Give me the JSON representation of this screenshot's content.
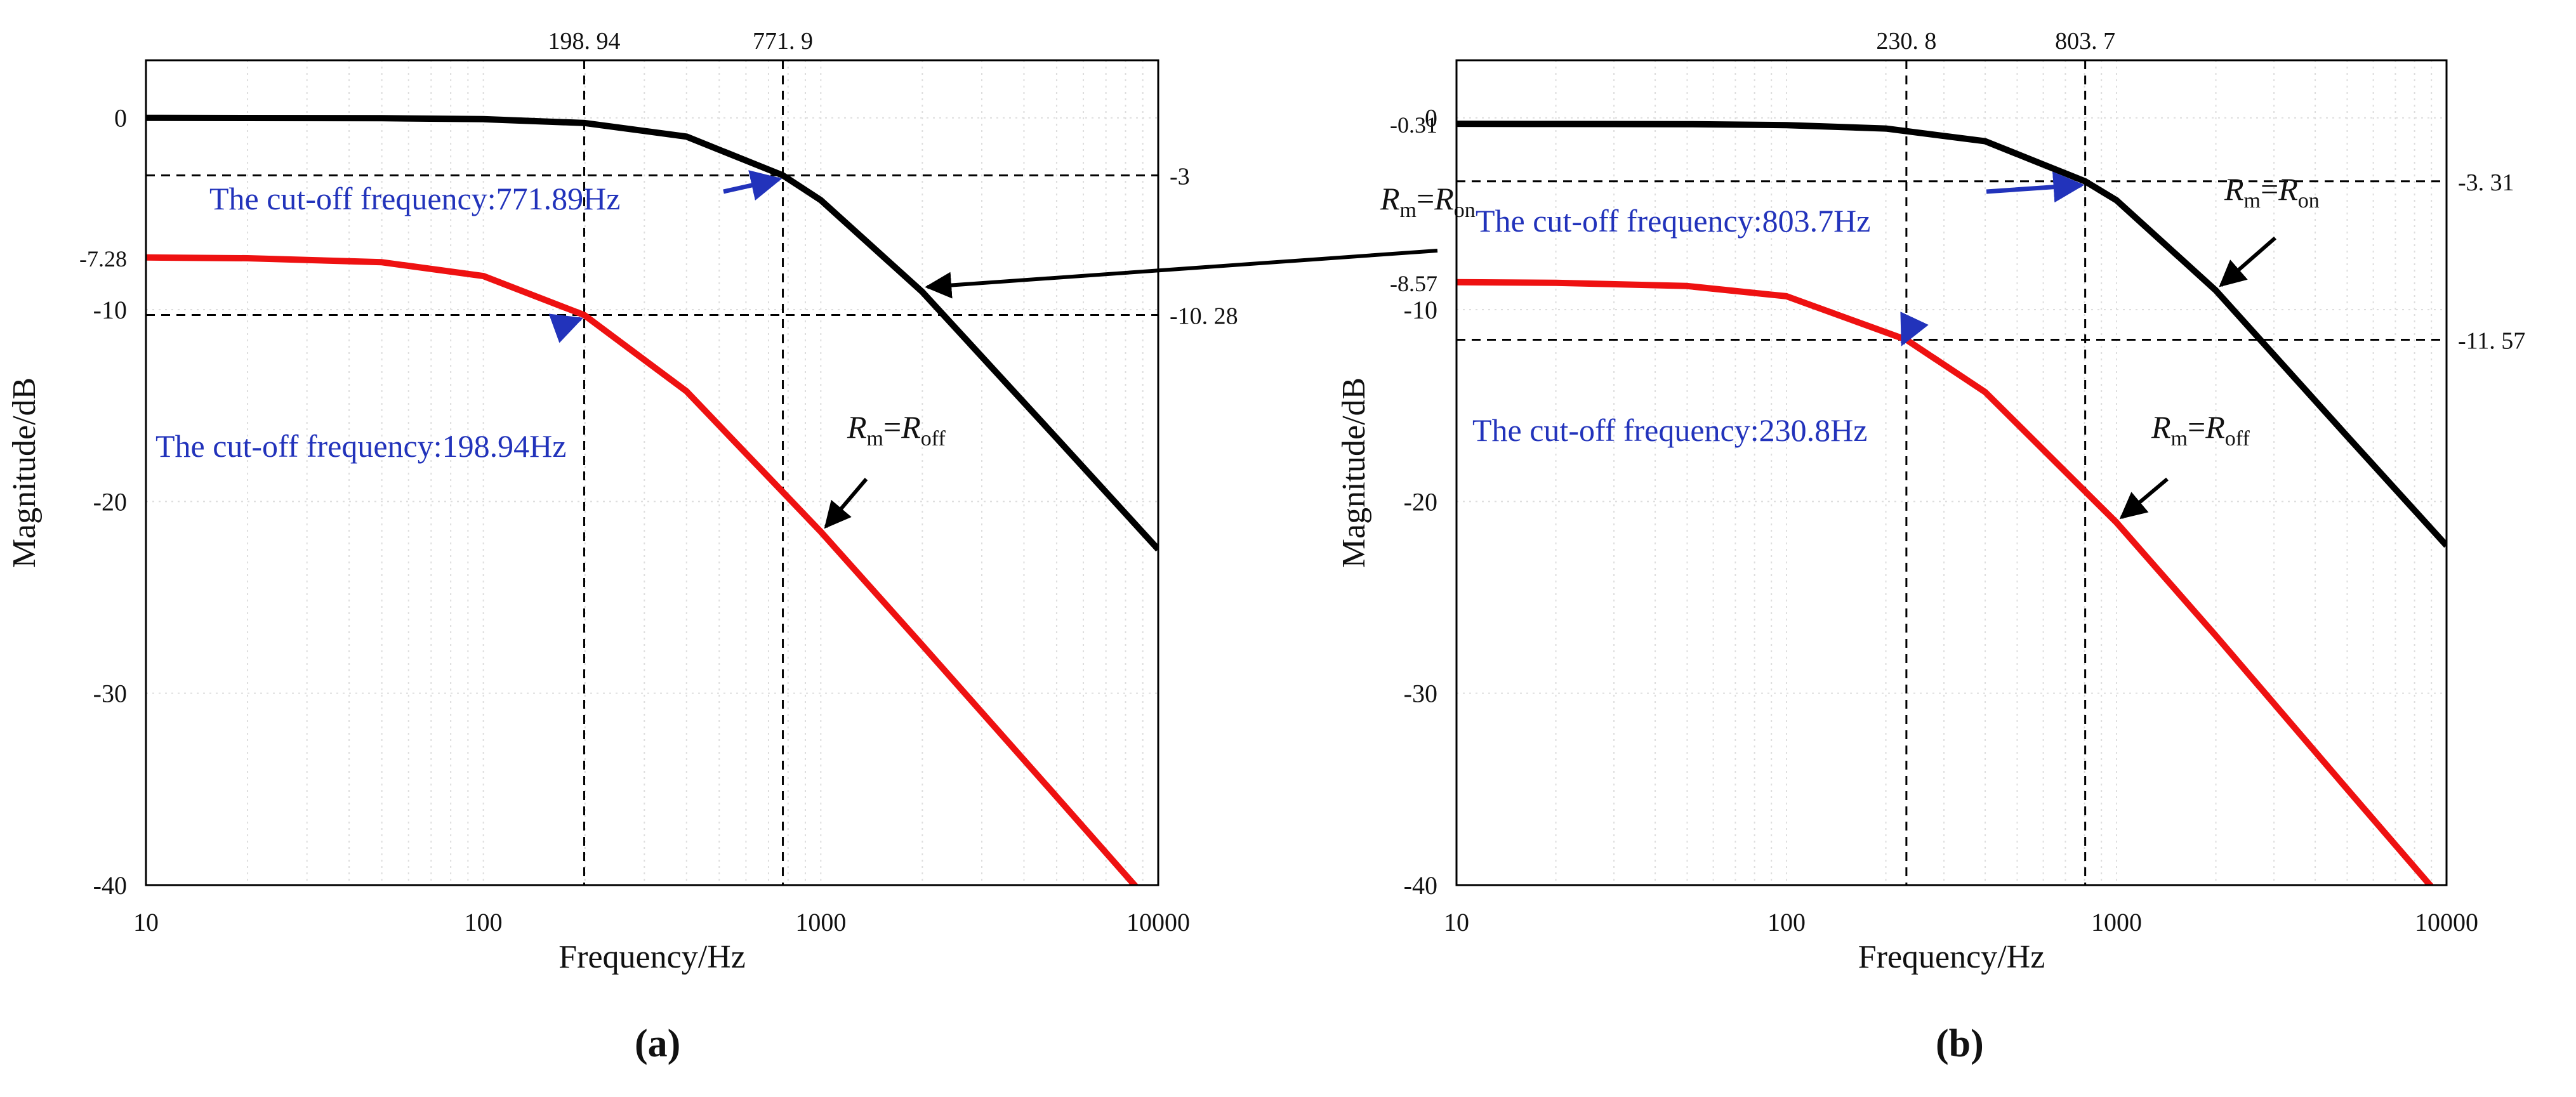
{
  "colors": {
    "on_curve": "#000000",
    "off_curve": "#ee1111",
    "annotation": "#2233bb",
    "guide": "#000000",
    "grid": "#dddddd"
  },
  "captions": [
    "(a)",
    "(b)"
  ],
  "chart_data": [
    {
      "type": "line",
      "panel_label": "(a)",
      "xlabel": "Frequency/Hz",
      "ylabel": "Magnitude/dB",
      "x_scale": "log",
      "xlim": [
        10,
        10000
      ],
      "ylim": [
        -40,
        3
      ],
      "x_ticks": [
        10,
        100,
        1000,
        10000
      ],
      "x_tick_labels": [
        "10",
        "100",
        "1000",
        "10000"
      ],
      "y_ticks": [
        0,
        -10,
        -20,
        -30,
        -40
      ],
      "y_tick_labels": [
        "0",
        "-10",
        "-20",
        "-30",
        "-40"
      ],
      "grid": true,
      "series": [
        {
          "name_label": "Rm=Ron",
          "name_main": "R",
          "name_main_sub": "m",
          "name_eq": "=R",
          "name_eq_sub": "on",
          "color": "#000000",
          "x": [
            10,
            20,
            50,
            100,
            200,
            400,
            771.9,
            1000,
            2000,
            5000,
            10000
          ],
          "y": [
            0,
            -0.01,
            -0.02,
            -0.07,
            -0.27,
            -0.98,
            -3.0,
            -4.29,
            -9.08,
            -16.7,
            -22.5
          ]
        },
        {
          "name_label": "Rm=Roff",
          "name_main": "R",
          "name_main_sub": "m",
          "name_eq": "=R",
          "name_eq_sub": "off",
          "color": "#ee1111",
          "x": [
            10,
            20,
            50,
            100,
            198.94,
            400,
            1000,
            2000,
            5000,
            10000
          ],
          "y": [
            -7.28,
            -7.32,
            -7.53,
            -8.25,
            -10.28,
            -14.26,
            -21.58,
            -27.5,
            -35.4,
            -41.4
          ]
        }
      ],
      "guides": {
        "vertical": [
          198.94,
          771.9
        ],
        "vertical_labels": [
          "198. 94",
          "771. 9"
        ],
        "horizontal": [
          -3,
          -10.28
        ],
        "horizontal_labels": [
          "-3",
          "-10. 28"
        ],
        "left_extra_label": "-7.28",
        "left_extra_value": -7.28
      },
      "annotations": [
        {
          "text": "The cut-off frequency:771.89Hz",
          "target_x": 771.9,
          "target_y": -3
        },
        {
          "text": "The cut-off frequency:198.94Hz",
          "target_x": 198.94,
          "target_y": -10.28
        }
      ]
    },
    {
      "type": "line",
      "panel_label": "(b)",
      "xlabel": "Frequency/Hz",
      "ylabel": "Magnitude/dB",
      "x_scale": "log",
      "xlim": [
        10,
        10000
      ],
      "ylim": [
        -40,
        3
      ],
      "x_ticks": [
        10,
        100,
        1000,
        10000
      ],
      "x_tick_labels": [
        "10",
        "100",
        "1000",
        "10000"
      ],
      "y_ticks": [
        0,
        -10,
        -20,
        -30,
        -40
      ],
      "y_tick_labels": [
        "0",
        "-10",
        "-20",
        "-30",
        "-40"
      ],
      "grid": true,
      "series": [
        {
          "name_label": "Rm=Ron",
          "name_main": "R",
          "name_main_sub": "m",
          "name_eq": "=R",
          "name_eq_sub": "on",
          "color": "#000000",
          "x": [
            10,
            20,
            50,
            100,
            200,
            400,
            803.7,
            1000,
            2000,
            5000,
            10000
          ],
          "y": [
            -0.31,
            -0.32,
            -0.33,
            -0.38,
            -0.56,
            -1.22,
            -3.31,
            -4.3,
            -9.0,
            -16.6,
            -22.3
          ]
        },
        {
          "name_label": "Rm=Roff",
          "name_main": "R",
          "name_main_sub": "m",
          "name_eq": "=R",
          "name_eq_sub": "off",
          "color": "#ee1111",
          "x": [
            10,
            20,
            50,
            100,
            230.8,
            400,
            1000,
            2000,
            5000,
            10000
          ],
          "y": [
            -8.57,
            -8.6,
            -8.77,
            -9.3,
            -11.57,
            -14.3,
            -21.1,
            -27.0,
            -35.0,
            -41.0
          ]
        }
      ],
      "guides": {
        "vertical": [
          230.8,
          803.7
        ],
        "vertical_labels": [
          "230. 8",
          "803. 7"
        ],
        "horizontal": [
          -3.31,
          -11.57
        ],
        "horizontal_labels": [
          "-3. 31",
          "-11. 57"
        ],
        "left_extra_labels": [
          "-0.31",
          "-8.57"
        ],
        "left_extra_values": [
          -0.31,
          -8.57
        ]
      },
      "annotations": [
        {
          "text": "The cut-off frequency:803.7Hz",
          "target_x": 803.7,
          "target_y": -3.31
        },
        {
          "text": "The cut-off frequency:230.8Hz",
          "target_x": 230.8,
          "target_y": -11.57
        }
      ]
    }
  ]
}
